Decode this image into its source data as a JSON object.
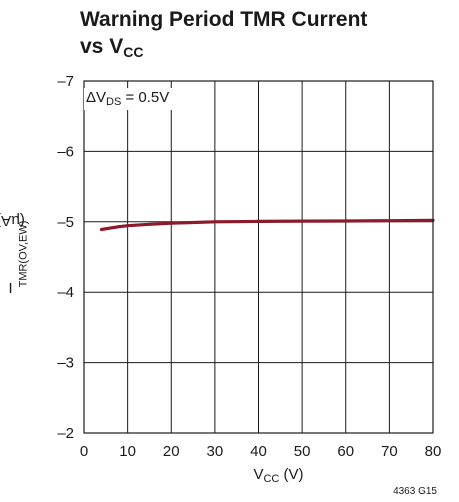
{
  "title": {
    "line1": "Warning Period TMR Current",
    "line2_main": "vs V",
    "line2_sub": "CC"
  },
  "ylabel": {
    "main": "I",
    "sub": "TMR(OV,EW)",
    "tail": " (µA)"
  },
  "xlabel": {
    "main": "V",
    "sub": "CC",
    "tail": " (V)"
  },
  "annotation": {
    "prefix": "ΔV",
    "sub": "DS",
    "tail": " = 0.5V"
  },
  "figure_id": "4363 G15",
  "colors": {
    "curve": "#8b1a2b",
    "grid": "#1a1a1a"
  },
  "chart_data": {
    "type": "line",
    "x_ticks": [
      0,
      10,
      20,
      30,
      40,
      50,
      60,
      70,
      80
    ],
    "y_ticks": [
      -7,
      -6,
      -5,
      -4,
      -3,
      -2
    ],
    "y_tick_labels": [
      "–7",
      "–6",
      "–5",
      "–4",
      "–3",
      "–2"
    ],
    "xlim": [
      0,
      80
    ],
    "ylim": [
      -7,
      -2
    ],
    "y_inverted": true,
    "grid": true,
    "series": [
      {
        "x": [
          4,
          6,
          8,
          10,
          15,
          20,
          25,
          30,
          40,
          50,
          60,
          70,
          80
        ],
        "y": [
          -4.89,
          -4.91,
          -4.93,
          -4.945,
          -4.965,
          -4.98,
          -4.99,
          -5.0,
          -5.005,
          -5.01,
          -5.012,
          -5.015,
          -5.02
        ]
      }
    ]
  }
}
